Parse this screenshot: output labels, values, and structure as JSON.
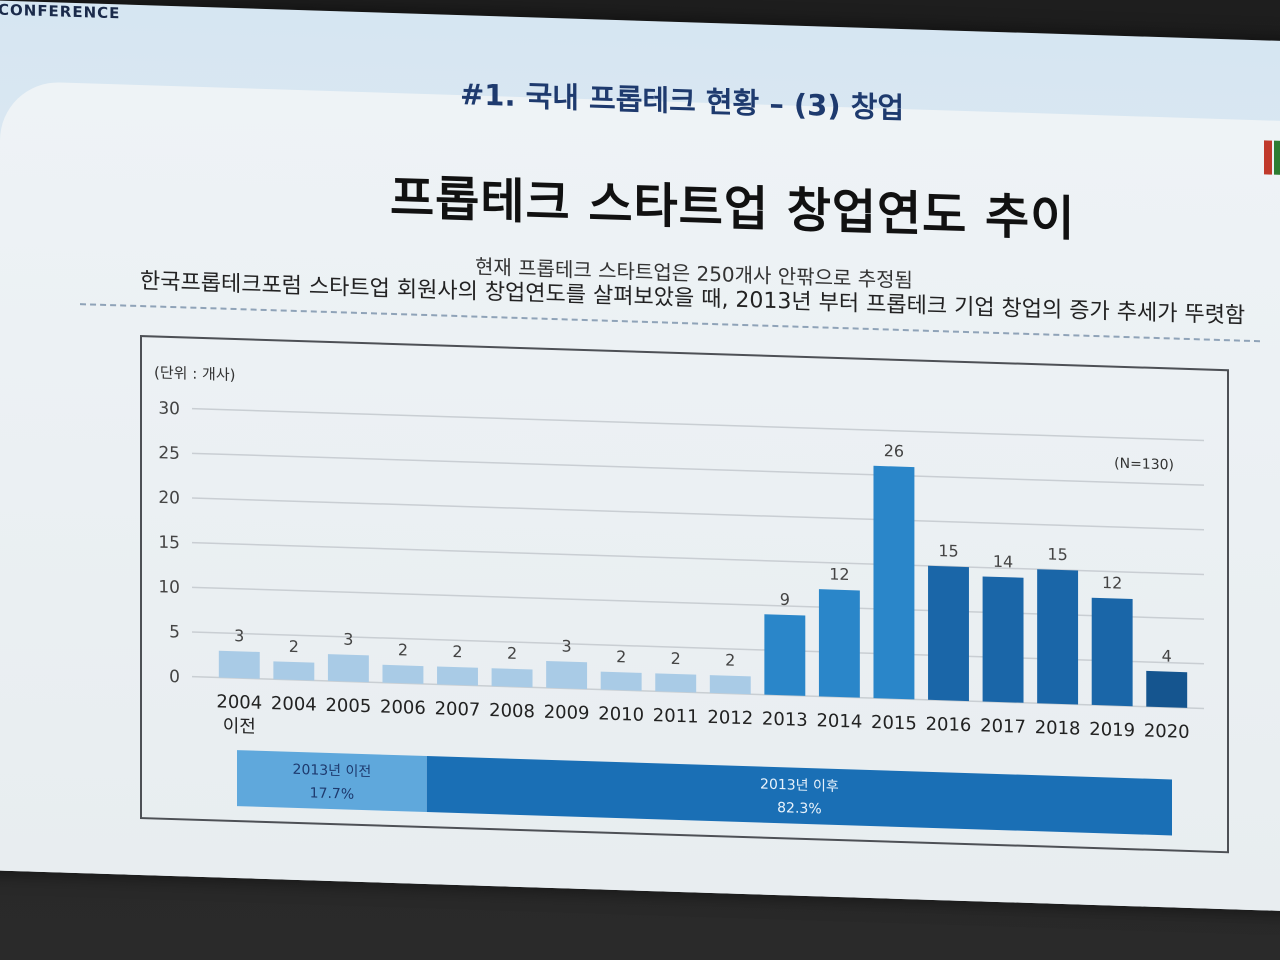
{
  "header": {
    "conference_text": "CONFERENCE",
    "section_title": "#1. 국내 프롭테크 현황 – (3) 창업",
    "main_title": "프롭테크 스타트업 창업연도 추이",
    "subtitle_1": "현재 프롭테크 스타트업은 250개사 안팎으로 추정됨",
    "subtitle_2": "한국프롭테크포럼 스타트업 회원사의 창업연도를 살펴보았을 때, 2013년 부터 프롭테크 기업 창업의 증가 추세가 뚜렷함"
  },
  "colors": {
    "light_bar": "#a9cbe6",
    "mid_bar": "#2a86c9",
    "dark_bar": "#1a66a8",
    "darkest_bar": "#15558f",
    "text_dark": "#1e3a6e"
  },
  "chart_data": {
    "type": "bar",
    "unit_label": "(단위 : 개사)",
    "sample_label": "(N=130)",
    "ylim": [
      0,
      30
    ],
    "yticks": [
      0,
      5,
      10,
      15,
      20,
      25,
      30
    ],
    "grid": true,
    "categories": [
      [
        "2004",
        "이전"
      ],
      [
        "2004"
      ],
      [
        "2005"
      ],
      [
        "2006"
      ],
      [
        "2007"
      ],
      [
        "2008"
      ],
      [
        "2009"
      ],
      [
        "2010"
      ],
      [
        "2011"
      ],
      [
        "2012"
      ],
      [
        "2013"
      ],
      [
        "2014"
      ],
      [
        "2015"
      ],
      [
        "2016"
      ],
      [
        "2017"
      ],
      [
        "2018"
      ],
      [
        "2019"
      ],
      [
        "2020"
      ]
    ],
    "values": [
      3,
      2,
      3,
      2,
      2,
      2,
      3,
      2,
      2,
      2,
      9,
      12,
      26,
      15,
      14,
      15,
      12,
      4
    ],
    "data_labels": [
      "3",
      "2",
      "3",
      "2",
      "2",
      "2",
      "3",
      "2",
      "2",
      "2",
      "9",
      "12",
      "26",
      "15",
      "14",
      "15",
      "12",
      "4"
    ],
    "shares": [
      {
        "label": "2013년 이전",
        "value": "17.7%"
      },
      {
        "label": "2013년 이후",
        "value": "82.3%"
      }
    ]
  }
}
